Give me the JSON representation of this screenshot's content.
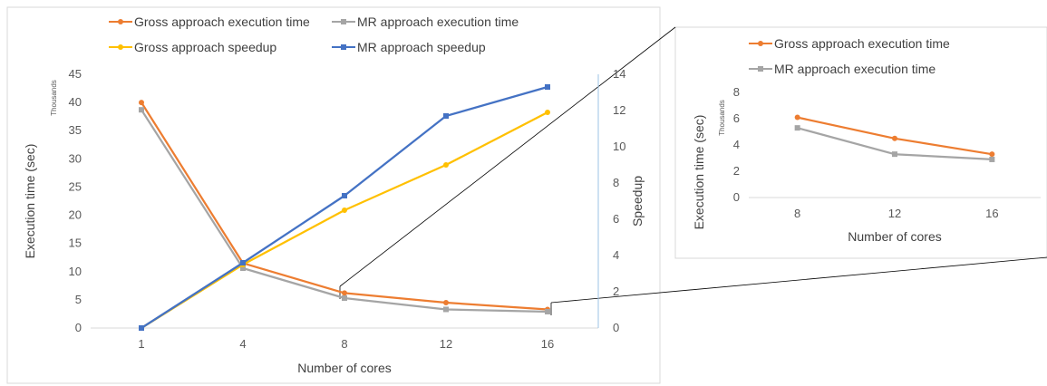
{
  "chart_data": [
    {
      "type": "line",
      "categories": [
        "1",
        "4",
        "8",
        "12",
        "16"
      ],
      "xlabel": "Number of cores",
      "ylabel": "Execution time (sec)",
      "ylabel_unit": "Thousands",
      "y2label": "Speedup",
      "ylim": [
        0,
        45
      ],
      "yticks": [
        0,
        5,
        10,
        15,
        20,
        25,
        30,
        35,
        40,
        45
      ],
      "y2lim": [
        0,
        14
      ],
      "y2ticks": [
        0,
        2,
        4,
        6,
        8,
        10,
        12,
        14
      ],
      "grid": false,
      "legend_position": "top",
      "series": [
        {
          "name": "Gross approach execution time",
          "axis": "primary",
          "color": "#ED7D31",
          "values": [
            40.0,
            11.5,
            6.2,
            4.5,
            3.3
          ]
        },
        {
          "name": "MR approach execution time",
          "axis": "primary",
          "color": "#A5A5A5",
          "values": [
            38.7,
            10.6,
            5.3,
            3.3,
            2.9
          ]
        },
        {
          "name": "Gross approach speedup",
          "axis": "secondary",
          "color": "#FFC000",
          "values": [
            0,
            3.5,
            6.5,
            9.0,
            11.9
          ]
        },
        {
          "name": "MR approach speedup",
          "axis": "secondary",
          "color": "#4472C4",
          "values": [
            0,
            3.6,
            7.3,
            11.7,
            13.3
          ]
        }
      ]
    },
    {
      "type": "line",
      "categories": [
        "8",
        "12",
        "16"
      ],
      "xlabel": "Number of cores",
      "ylabel": "Execution time (sec)",
      "ylabel_unit": "Thousands",
      "ylim": [
        0,
        8
      ],
      "yticks": [
        0,
        2,
        4,
        6,
        8
      ],
      "grid": false,
      "legend_position": "top",
      "series": [
        {
          "name": "Gross approach execution time",
          "color": "#ED7D31",
          "values": [
            6.1,
            4.5,
            3.3
          ]
        },
        {
          "name": "MR approach execution time",
          "color": "#A5A5A5",
          "values": [
            5.3,
            3.3,
            2.9
          ]
        }
      ]
    }
  ]
}
